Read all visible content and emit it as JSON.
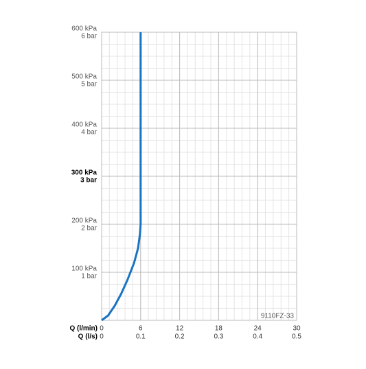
{
  "chart_data": {
    "type": "line",
    "x_label": "Q (l/min)",
    "x2_label": "Q (l/s)",
    "x": [
      0,
      1,
      2,
      3,
      4,
      5,
      5.6,
      5.9,
      6,
      6,
      6,
      6,
      6
    ],
    "series": [
      {
        "color": "#1a73c2",
        "values": [
          0,
          10,
          30,
          55,
          85,
          120,
          150,
          180,
          200,
          300,
          400,
          500,
          600
        ]
      }
    ],
    "xlim": [
      0,
      30
    ],
    "xticks": [
      0,
      6,
      12,
      18,
      24,
      30
    ],
    "x2lim": [
      0,
      0.5
    ],
    "x2ticks": [
      0,
      0.1,
      0.2,
      0.3,
      0.4,
      0.5
    ],
    "ylim": [
      0,
      600
    ],
    "yticks": [
      {
        "value": 100,
        "label": "100 kPa"
      },
      {
        "value": 200,
        "label": "200 kPa"
      },
      {
        "value": 300,
        "label": "300 kPa"
      },
      {
        "value": 400,
        "label": "400 kPa"
      },
      {
        "value": 500,
        "label": "500 kPa"
      },
      {
        "value": 600,
        "label": "600 kPa"
      }
    ],
    "yticks_bar": [
      "1 bar",
      "2 bar",
      "3 bar",
      "4 bar",
      "5 bar",
      "6 bar"
    ],
    "bold_ytick": 300,
    "x_minor_step": 1.2,
    "y_minor_step": 25,
    "grid": true,
    "annotation": "9110FZ-33"
  }
}
